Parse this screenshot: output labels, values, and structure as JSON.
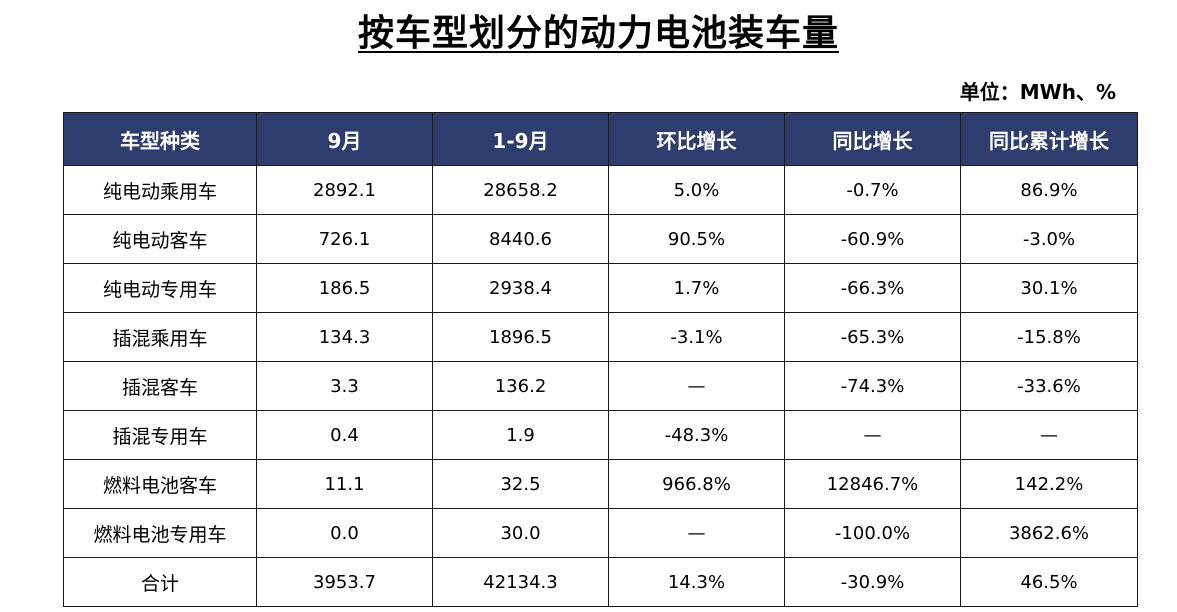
{
  "title": "按车型划分的动力电池装车量",
  "unit": "单位：MWh、%",
  "table": {
    "headers": [
      "车型种类",
      "9月",
      "1-9月",
      "环比增长",
      "同比增长",
      "同比累计增长"
    ],
    "rows": [
      [
        "纯电动乘用车",
        "2892.1",
        "28658.2",
        "5.0%",
        "-0.7%",
        "86.9%"
      ],
      [
        "纯电动客车",
        "726.1",
        "8440.6",
        "90.5%",
        "-60.9%",
        "-3.0%"
      ],
      [
        "纯电动专用车",
        "186.5",
        "2938.4",
        "1.7%",
        "-66.3%",
        "30.1%"
      ],
      [
        "插混乘用车",
        "134.3",
        "1896.5",
        "-3.1%",
        "-65.3%",
        "-15.8%"
      ],
      [
        "插混客车",
        "3.3",
        "136.2",
        "—",
        "-74.3%",
        "-33.6%"
      ],
      [
        "插混专用车",
        "0.4",
        "1.9",
        "-48.3%",
        "—",
        "—"
      ],
      [
        "燃料电池客车",
        "11.1",
        "32.5",
        "966.8%",
        "12846.7%",
        "142.2%"
      ],
      [
        "燃料电池专用车",
        "0.0",
        "30.0",
        "—",
        "-100.0%",
        "3862.6%"
      ],
      [
        "合计",
        "3953.7",
        "42134.3",
        "14.3%",
        "-30.9%",
        "46.5%"
      ]
    ]
  },
  "colors": {
    "header_bg": "#2f3d6e",
    "header_text": "#ffffff",
    "border": "#1a1a1a"
  }
}
